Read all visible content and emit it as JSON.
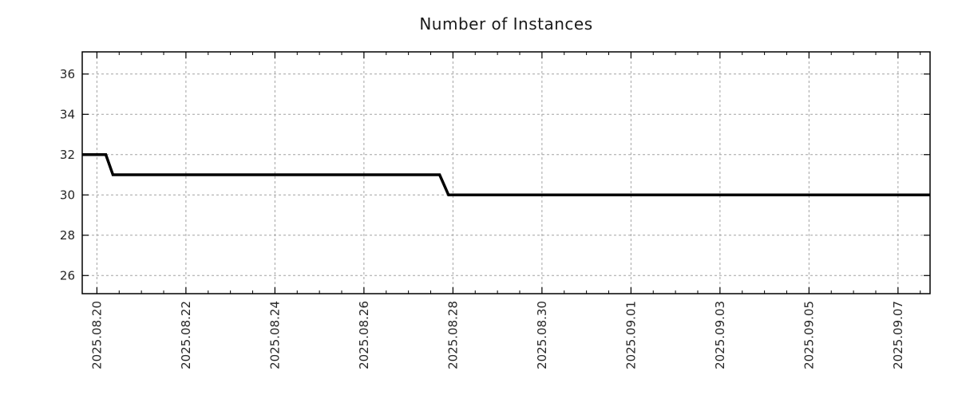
{
  "title": "Number of Instances",
  "chart_data": {
    "type": "line",
    "title": "Number of Instances",
    "xlabel": "",
    "ylabel": "",
    "legend": "none",
    "grid": true,
    "colors": {
      "line": "#000000",
      "grid": "#a3a3a3",
      "axis": "#000000",
      "tick_text": "#262626",
      "title_text": "#1a1a1a",
      "background": "#ffffff"
    },
    "ylim": [
      25.1,
      37.1
    ],
    "yticks": [
      26,
      28,
      30,
      32,
      34,
      36
    ],
    "xlim_days": [
      -0.33,
      18.72
    ],
    "x_major_tick_days": 2,
    "x_minor_tick_days": 0.5,
    "xticks": [
      {
        "t": 0,
        "label": "2025.08.20"
      },
      {
        "t": 2,
        "label": "2025.08.22"
      },
      {
        "t": 4,
        "label": "2025.08.24"
      },
      {
        "t": 6,
        "label": "2025.08.26"
      },
      {
        "t": 8,
        "label": "2025.08.28"
      },
      {
        "t": 10,
        "label": "2025.08.30"
      },
      {
        "t": 12,
        "label": "2025.09.01"
      },
      {
        "t": 14,
        "label": "2025.09.03"
      },
      {
        "t": 16,
        "label": "2025.09.05"
      },
      {
        "t": 18,
        "label": "2025.09.07"
      }
    ],
    "series": [
      {
        "name": "instances",
        "points": [
          {
            "t": -0.33,
            "date": "2025.08.19 ~16:00",
            "value": 32
          },
          {
            "t": 0.2,
            "date": "2025.08.20 ~05:00",
            "value": 32
          },
          {
            "t": 0.36,
            "date": "2025.08.20 ~09:00",
            "value": 31
          },
          {
            "t": 7.7,
            "date": "2025.08.27 ~17:00",
            "value": 31
          },
          {
            "t": 7.9,
            "date": "2025.08.27 ~22:00",
            "value": 30
          },
          {
            "t": 18.72,
            "date": "2025.09.07 ~17:00",
            "value": 30
          }
        ]
      }
    ]
  }
}
